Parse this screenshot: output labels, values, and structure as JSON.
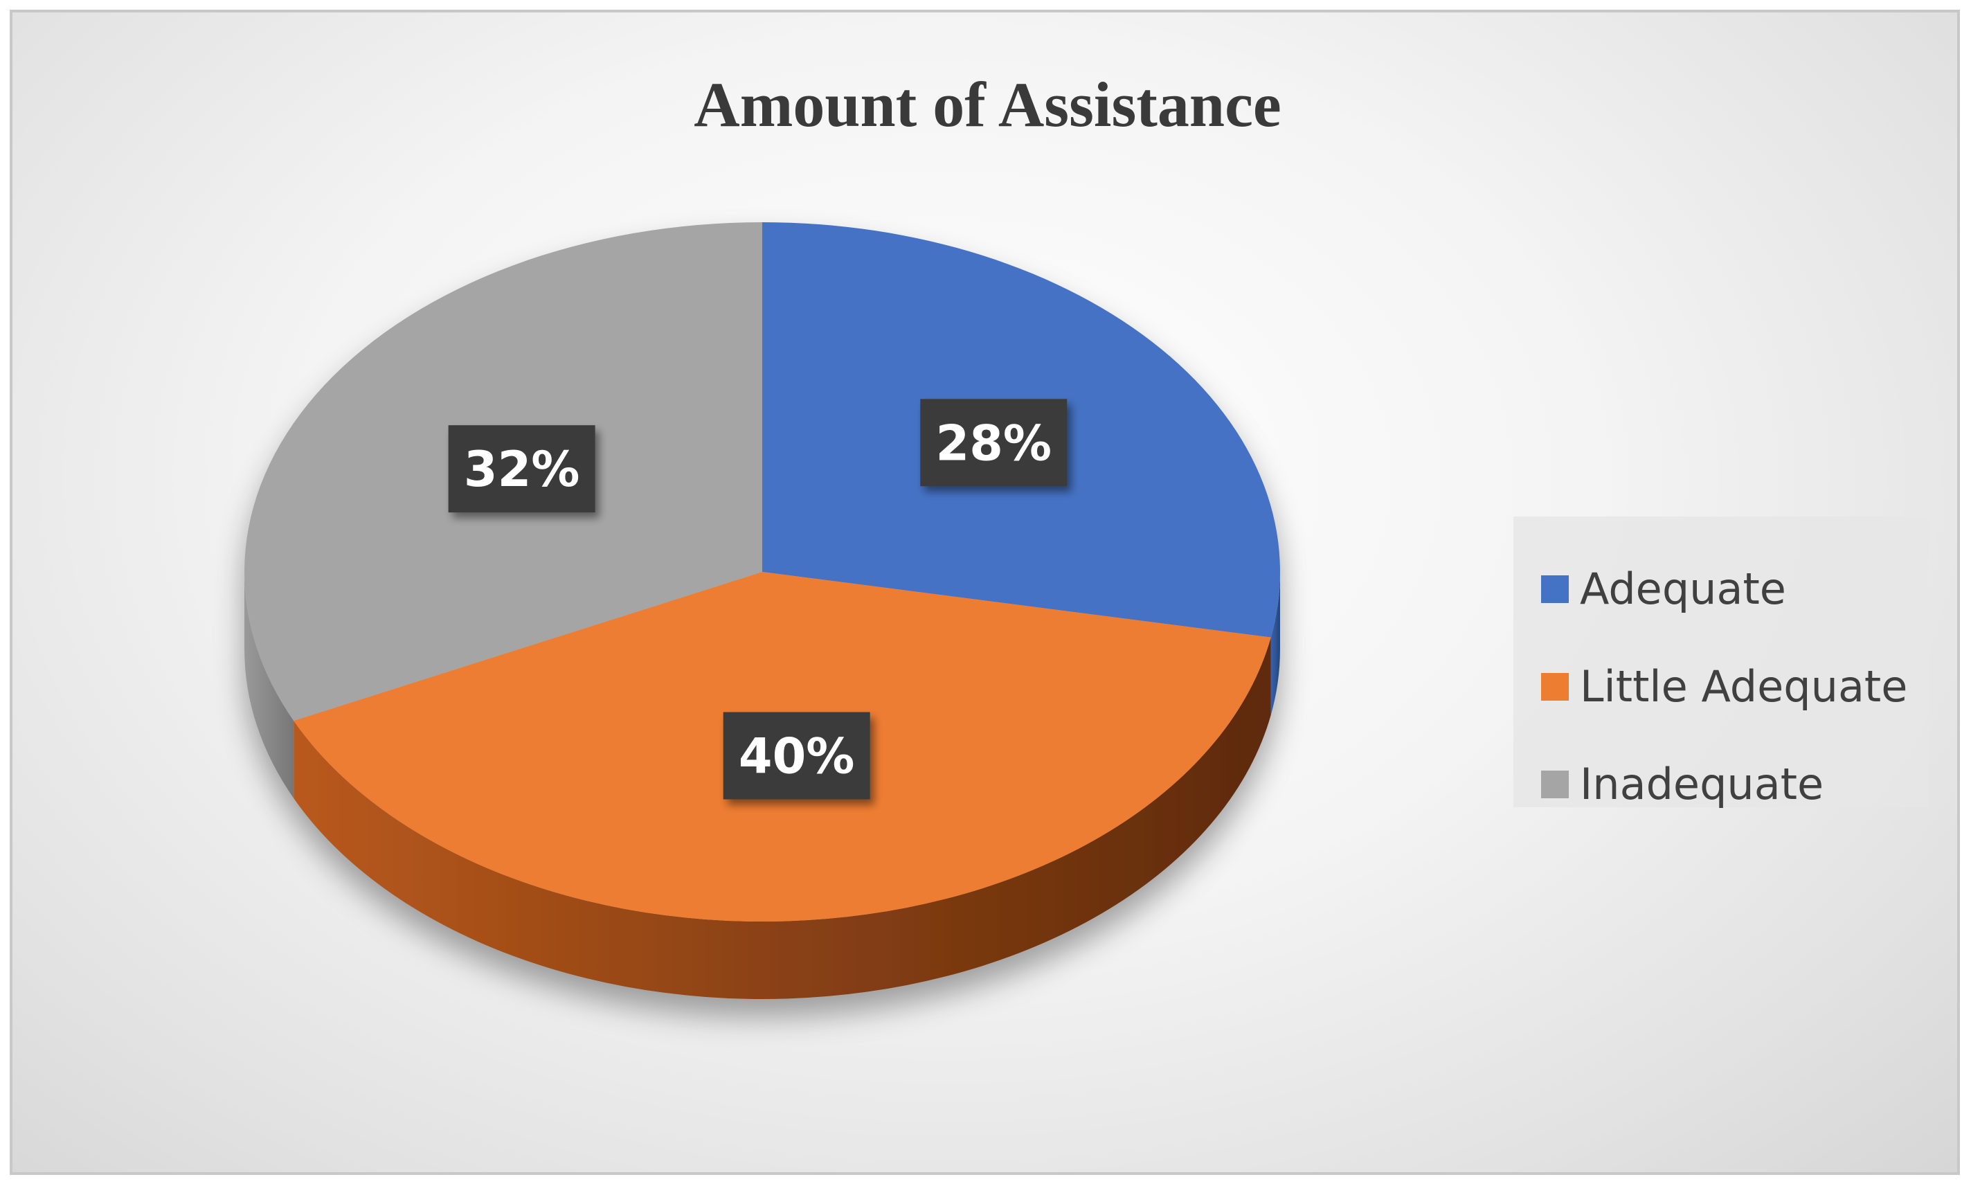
{
  "chart_data": {
    "type": "pie",
    "title": "Amount of Assistance",
    "categories": [
      "Adequate",
      "Little Adequate",
      "Inadequate"
    ],
    "values": [
      28,
      40,
      32
    ],
    "data_labels": [
      "28%",
      "40%",
      "32%"
    ],
    "colors": [
      "#4472C4",
      "#ED7D31",
      "#A5A5A5"
    ],
    "side_colors": [
      "#2f5597",
      "#7a3a10",
      "#7c7c7c"
    ],
    "legend_position": "right",
    "style": "3d-tilted",
    "start_angle_deg": 0,
    "direction": "clockwise"
  }
}
